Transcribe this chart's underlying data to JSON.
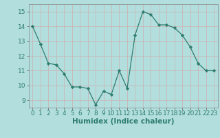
{
  "x": [
    0,
    1,
    2,
    3,
    4,
    5,
    6,
    7,
    8,
    9,
    10,
    11,
    12,
    13,
    14,
    15,
    16,
    17,
    18,
    19,
    20,
    21,
    22,
    23
  ],
  "y": [
    14.0,
    12.8,
    11.5,
    11.4,
    10.8,
    9.9,
    9.9,
    9.8,
    8.7,
    9.6,
    9.4,
    11.0,
    9.8,
    13.4,
    15.0,
    14.8,
    14.1,
    14.1,
    13.9,
    13.4,
    12.6,
    11.5,
    11.0,
    11.0
  ],
  "line_color": "#2e7d6e",
  "marker": "D",
  "marker_size": 2.2,
  "bg_color": "#b2dede",
  "grid_color": "#c8e8e8",
  "xlabel": "Humidex (Indice chaleur)",
  "xlabel_fontsize": 7.5,
  "tick_fontsize": 6.5,
  "ylim": [
    8.5,
    15.5
  ],
  "xlim": [
    -0.5,
    23.5
  ],
  "yticks": [
    9,
    10,
    11,
    12,
    13,
    14,
    15
  ],
  "xticks": [
    0,
    1,
    2,
    3,
    4,
    5,
    6,
    7,
    8,
    9,
    10,
    11,
    12,
    13,
    14,
    15,
    16,
    17,
    18,
    19,
    20,
    21,
    22,
    23
  ]
}
